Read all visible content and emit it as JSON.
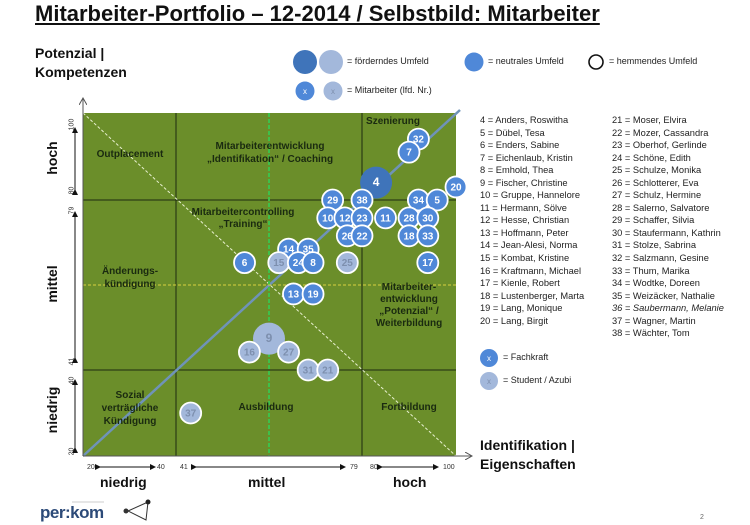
{
  "title": "Mitarbeiter-Portfolio – 12-2014 / Selbstbild: Mitarbeiter",
  "y_axis": {
    "title_line1": "Potenzial |",
    "title_line2": "Kompetenzen",
    "bands": [
      "hoch",
      "mittel",
      "niedrig"
    ],
    "ticks": [
      "100",
      "80",
      "79",
      "41",
      "40",
      "20"
    ]
  },
  "x_axis": {
    "title_line1": "Identifikation |",
    "title_line2": "Eigenschaften",
    "bands": [
      "niedrig",
      "mittel",
      "hoch"
    ],
    "ticks": [
      "20",
      "40",
      "41",
      "79",
      "80",
      "100"
    ]
  },
  "legend": {
    "foerdernd": "= förderndes  Umfeld",
    "neutral": "= neutrales  Umfeld",
    "hemmend": "= hemmendes  Umfeld",
    "mitarbeiter": "= Mitarbeiter  (lfd. Nr.)",
    "marker": "x",
    "fachkraft": "= Fachkraft",
    "student": "= Student / Azubi"
  },
  "quadrants": {
    "top_left": "Outplacement",
    "top_mid_1": "Mitarbeiterentwicklung",
    "top_mid_2": "„Identifikation“ / Coaching",
    "top_right": "Szenierung",
    "mid_left_1": "Änderungs-",
    "mid_left_2": "kündigung",
    "mid_mid_1": "Mitarbeitercontrolling",
    "mid_mid_2": "„Training“",
    "mid_right_1": "Mitarbeiter-",
    "mid_right_2": "entwicklung",
    "mid_right_3": "„Potenzial“ /",
    "mid_right_4": "Weiterbildung",
    "bot_left_1": "Sozial",
    "bot_left_2": "verträgliche",
    "bot_left_3": "Kündigung",
    "bot_mid": "Ausbildung",
    "bot_right": "Fortbildung"
  },
  "names_left": [
    "4  = Anders, Roswitha",
    "5  = Dübel, Tesa",
    "6  = Enders, Sabine",
    "7  = Eichenlaub, Kristin",
    "8  = Emhold, Thea",
    "9  = Fischer, Christine",
    "10 = Gruppe, Hannelore",
    "11 = Hermann, Sölve",
    "12 = Hesse, Christian",
    "13 = Hoffmann, Peter",
    "14 = Jean-Alesi, Norma",
    "15 = Kombat, Kristine",
    "16 = Kraftmann, Michael",
    "17 = Kienle, Robert",
    "18 = Lustenberger,  Marta",
    "19 = Lang, Monique",
    "20 = Lang, Birgit"
  ],
  "names_right": [
    "21 = Moser, Elvira",
    "22 = Mozer, Cassandra",
    "23 = Oberhof, Gerlinde",
    "24 = Schöne, Edith",
    "25 = Schulze, Monika",
    "26 = Schlotterer, Eva",
    "27 = Schulz, Hermine",
    "28 = Salerno, Salvatore",
    "29 = Schaffer, Silvia",
    "30 = Staufermann, Kathrin",
    "31 = Stolze, Sabrina",
    "32 = Salzmann, Gesine",
    "33 = Thum, Marika",
    "34 = Wodtke, Doreen",
    "35 = Weizäcker, Nathalie",
    "36 = Saubermann, Melanie",
    "37 = Wagner, Martin",
    "38 = Wächter, Tom"
  ],
  "logo": "per:kom",
  "page_number": "2",
  "colors": {
    "field": "#6b8e2a",
    "neutral": "#4f88d8",
    "foerdernd_dark": "#3f74ba",
    "foerdernd_light": "#a3b8db",
    "student": "#a3b8db",
    "diagonal": "#6f93b8"
  },
  "chart_data": {
    "type": "scatter",
    "x_range": [
      20,
      100
    ],
    "y_range": [
      20,
      100
    ],
    "x_band_limits": [
      [
        20,
        40
      ],
      [
        41,
        79
      ],
      [
        80,
        100
      ]
    ],
    "y_band_limits": [
      [
        20,
        40
      ],
      [
        41,
        79
      ],
      [
        80,
        100
      ]
    ],
    "reference_lines": {
      "x_mean": 60,
      "y_mean": 60
    },
    "points": [
      {
        "id": "32",
        "x": 92,
        "y": 94,
        "group": "fachkraft",
        "umfeld": "neutral"
      },
      {
        "id": "7",
        "x": 90,
        "y": 91,
        "group": "fachkraft",
        "umfeld": "neutral"
      },
      {
        "id": "4",
        "x": 83,
        "y": 84,
        "group": "fachkraft",
        "umfeld": "foerdernd"
      },
      {
        "id": "20",
        "x": 100,
        "y": 83,
        "group": "fachkraft",
        "umfeld": "neutral"
      },
      {
        "id": "34",
        "x": 92,
        "y": 80,
        "group": "fachkraft",
        "umfeld": "neutral"
      },
      {
        "id": "5",
        "x": 96,
        "y": 80,
        "group": "fachkraft",
        "umfeld": "neutral"
      },
      {
        "id": "29",
        "x": 73,
        "y": 80,
        "group": "fachkraft",
        "umfeld": "neutral"
      },
      {
        "id": "38",
        "x": 80,
        "y": 80,
        "group": "fachkraft",
        "umfeld": "neutral"
      },
      {
        "id": "10",
        "x": 72,
        "y": 75,
        "group": "fachkraft",
        "umfeld": "neutral"
      },
      {
        "id": "12",
        "x": 75.5,
        "y": 75,
        "group": "fachkraft",
        "umfeld": "neutral"
      },
      {
        "id": "23",
        "x": 80,
        "y": 75,
        "group": "fachkraft",
        "umfeld": "neutral"
      },
      {
        "id": "11",
        "x": 85,
        "y": 75,
        "group": "fachkraft",
        "umfeld": "neutral"
      },
      {
        "id": "28",
        "x": 90,
        "y": 75,
        "group": "fachkraft",
        "umfeld": "neutral"
      },
      {
        "id": "30",
        "x": 94,
        "y": 75,
        "group": "fachkraft",
        "umfeld": "neutral"
      },
      {
        "id": "26",
        "x": 76,
        "y": 71,
        "group": "fachkraft",
        "umfeld": "neutral"
      },
      {
        "id": "22",
        "x": 80,
        "y": 71,
        "group": "fachkraft",
        "umfeld": "neutral"
      },
      {
        "id": "18",
        "x": 90,
        "y": 71,
        "group": "fachkraft",
        "umfeld": "neutral"
      },
      {
        "id": "33",
        "x": 94,
        "y": 71,
        "group": "fachkraft",
        "umfeld": "neutral"
      },
      {
        "id": "14",
        "x": 64,
        "y": 68,
        "group": "fachkraft",
        "umfeld": "neutral"
      },
      {
        "id": "35",
        "x": 68,
        "y": 68,
        "group": "fachkraft",
        "umfeld": "neutral"
      },
      {
        "id": "6",
        "x": 55,
        "y": 65,
        "group": "fachkraft",
        "umfeld": "neutral"
      },
      {
        "id": "15",
        "x": 62,
        "y": 65,
        "group": "student",
        "umfeld": "neutral"
      },
      {
        "id": "24",
        "x": 66,
        "y": 65,
        "group": "fachkraft",
        "umfeld": "neutral"
      },
      {
        "id": "8",
        "x": 69,
        "y": 65,
        "group": "fachkraft",
        "umfeld": "neutral"
      },
      {
        "id": "25",
        "x": 76,
        "y": 65,
        "group": "student",
        "umfeld": "neutral"
      },
      {
        "id": "17",
        "x": 94,
        "y": 65,
        "group": "fachkraft",
        "umfeld": "neutral"
      },
      {
        "id": "13",
        "x": 65,
        "y": 58,
        "group": "fachkraft",
        "umfeld": "neutral"
      },
      {
        "id": "19",
        "x": 69,
        "y": 58,
        "group": "fachkraft",
        "umfeld": "neutral"
      },
      {
        "id": "9",
        "x": 60,
        "y": 48,
        "group": "student",
        "umfeld": "foerdernd"
      },
      {
        "id": "16",
        "x": 56,
        "y": 45,
        "group": "student",
        "umfeld": "neutral"
      },
      {
        "id": "27",
        "x": 64,
        "y": 45,
        "group": "student",
        "umfeld": "neutral"
      },
      {
        "id": "31",
        "x": 68,
        "y": 41,
        "group": "student",
        "umfeld": "neutral"
      },
      {
        "id": "21",
        "x": 72,
        "y": 41,
        "group": "student",
        "umfeld": "neutral"
      },
      {
        "id": "37",
        "x": 44,
        "y": 30,
        "group": "student",
        "umfeld": "neutral"
      }
    ]
  }
}
